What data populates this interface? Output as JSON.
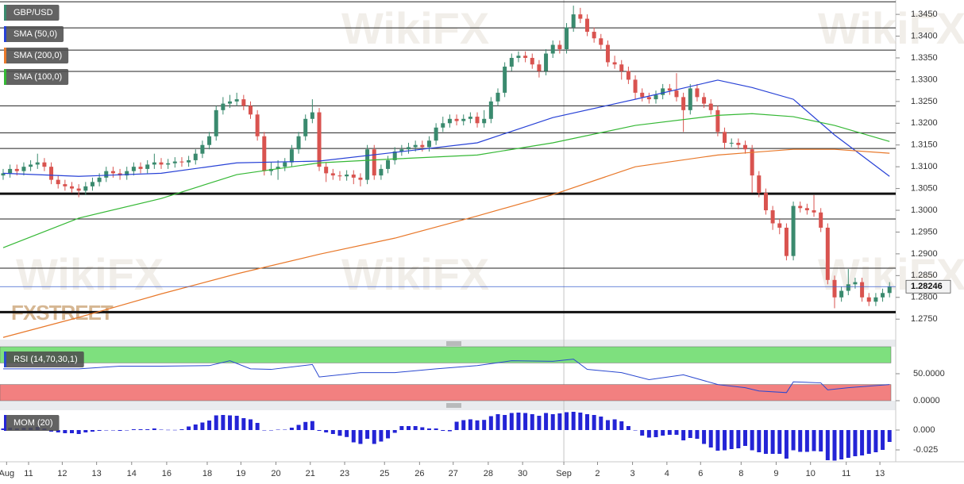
{
  "watermark": "WikiFX",
  "logo": "FXSTREET",
  "chart_data": [
    {
      "type": "candlestick",
      "name": "GBP/USD",
      "up_color": "#3a8a6e",
      "down_color": "#d9534f",
      "xlim": [
        -0.46,
        129.9
      ],
      "ylim": [
        1.2703,
        1.3483
      ],
      "yticks": [
        {
          "value": 1.275,
          "label": "1.2750"
        },
        {
          "value": 1.28,
          "label": "1.2800"
        },
        {
          "value": 1.285,
          "label": "1.2850"
        },
        {
          "value": 1.29,
          "label": "1.2900"
        },
        {
          "value": 1.295,
          "label": "1.2950"
        },
        {
          "value": 1.3,
          "label": "1.3000"
        },
        {
          "value": 1.305,
          "label": "1.3050"
        },
        {
          "value": 1.31,
          "label": "1.3100"
        },
        {
          "value": 1.315,
          "label": "1.3150"
        },
        {
          "value": 1.32,
          "label": "1.3200"
        },
        {
          "value": 1.325,
          "label": "1.3250"
        },
        {
          "value": 1.33,
          "label": "1.3300"
        },
        {
          "value": 1.335,
          "label": "1.3350"
        },
        {
          "value": 1.34,
          "label": "1.3400"
        },
        {
          "value": 1.345,
          "label": "1.3450"
        }
      ],
      "hlines": [
        1.3479,
        1.3419,
        1.3368,
        1.3319,
        1.324,
        1.3178,
        1.3142,
        1.298,
        1.2867
      ],
      "hlines_bold": [
        1.3038,
        1.2766
      ],
      "x_divider": 81.6,
      "last_price": 1.28246,
      "open": [
        1.308,
        1.3085,
        1.3095,
        1.309,
        1.31,
        1.3105,
        1.311,
        1.31,
        1.307,
        1.306,
        1.3055,
        1.305,
        1.3045,
        1.3055,
        1.3065,
        1.3075,
        1.309,
        1.3085,
        1.308,
        1.309,
        1.31,
        1.3095,
        1.3105,
        1.311,
        1.3105,
        1.3108,
        1.3112,
        1.311,
        1.3115,
        1.313,
        1.315,
        1.317,
        1.323,
        1.3245,
        1.325,
        1.3255,
        1.324,
        1.322,
        1.317,
        1.309,
        1.3095,
        1.31,
        1.311,
        1.314,
        1.317,
        1.321,
        1.3225,
        1.31,
        1.3085,
        1.308,
        1.3078,
        1.3082,
        1.3075,
        1.307,
        1.314,
        1.308,
        1.3095,
        1.3115,
        1.3135,
        1.314,
        1.3145,
        1.315,
        1.3145,
        1.316,
        1.319,
        1.32,
        1.321,
        1.3205,
        1.321,
        1.3215,
        1.32,
        1.321,
        1.325,
        1.327,
        1.333,
        1.335,
        1.3355,
        1.335,
        1.3335,
        1.332,
        1.336,
        1.338,
        1.337,
        1.342,
        1.345,
        1.344,
        1.341,
        1.3395,
        1.338,
        1.334,
        1.3335,
        1.332,
        1.33,
        1.327,
        1.326,
        1.3255,
        1.3265,
        1.328,
        1.3275,
        1.326,
        1.323,
        1.328,
        1.326,
        1.3245,
        1.323,
        1.318,
        1.3155,
        1.3155,
        1.315,
        1.314,
        1.308,
        1.304,
        1.3,
        1.297,
        1.296,
        1.2895,
        1.301,
        1.3005,
        1.3,
        1.2995,
        1.296,
        1.284,
        1.28,
        1.2815,
        1.283,
        1.2835,
        1.28,
        1.279,
        1.28,
        1.281
      ],
      "high": [
        1.3095,
        1.3105,
        1.3105,
        1.311,
        1.3115,
        1.313,
        1.312,
        1.311,
        1.308,
        1.307,
        1.3065,
        1.306,
        1.3065,
        1.3075,
        1.3085,
        1.31,
        1.31,
        1.3095,
        1.31,
        1.311,
        1.311,
        1.3115,
        1.313,
        1.312,
        1.3118,
        1.3122,
        1.3122,
        1.3125,
        1.314,
        1.316,
        1.318,
        1.324,
        1.326,
        1.3265,
        1.327,
        1.3265,
        1.325,
        1.323,
        1.318,
        1.311,
        1.3115,
        1.312,
        1.315,
        1.318,
        1.322,
        1.3255,
        1.3235,
        1.311,
        1.3095,
        1.309,
        1.3092,
        1.3092,
        1.3085,
        1.315,
        1.315,
        1.3105,
        1.3125,
        1.3145,
        1.315,
        1.3155,
        1.316,
        1.316,
        1.317,
        1.32,
        1.3215,
        1.322,
        1.322,
        1.322,
        1.3225,
        1.3225,
        1.323,
        1.326,
        1.328,
        1.334,
        1.336,
        1.3365,
        1.3365,
        1.336,
        1.3345,
        1.337,
        1.339,
        1.339,
        1.343,
        1.347,
        1.3465,
        1.345,
        1.342,
        1.3405,
        1.339,
        1.3355,
        1.3345,
        1.333,
        1.331,
        1.328,
        1.327,
        1.3275,
        1.329,
        1.329,
        1.3315,
        1.327,
        1.329,
        1.329,
        1.327,
        1.3255,
        1.324,
        1.319,
        1.3165,
        1.3165,
        1.316,
        1.315,
        1.309,
        1.305,
        1.301,
        1.298,
        1.297,
        1.302,
        1.302,
        1.3015,
        1.3035,
        1.3005,
        1.297,
        1.285,
        1.2825,
        1.2865,
        1.2845,
        1.2845,
        1.281,
        1.281,
        1.282,
        1.2835
      ],
      "low": [
        1.307,
        1.3075,
        1.308,
        1.308,
        1.309,
        1.3095,
        1.309,
        1.306,
        1.305,
        1.3045,
        1.304,
        1.303,
        1.3035,
        1.3045,
        1.3055,
        1.3065,
        1.3075,
        1.307,
        1.307,
        1.308,
        1.3085,
        1.3085,
        1.3095,
        1.3095,
        1.3095,
        1.3098,
        1.31,
        1.31,
        1.3105,
        1.312,
        1.314,
        1.316,
        1.322,
        1.3235,
        1.324,
        1.323,
        1.321,
        1.316,
        1.308,
        1.308,
        1.307,
        1.309,
        1.31,
        1.313,
        1.316,
        1.32,
        1.309,
        1.3065,
        1.307,
        1.3068,
        1.3068,
        1.306,
        1.3055,
        1.306,
        1.307,
        1.307,
        1.3085,
        1.3105,
        1.3125,
        1.313,
        1.3135,
        1.3135,
        1.3135,
        1.315,
        1.318,
        1.319,
        1.3195,
        1.3195,
        1.32,
        1.319,
        1.319,
        1.32,
        1.324,
        1.326,
        1.332,
        1.334,
        1.334,
        1.3325,
        1.3305,
        1.331,
        1.335,
        1.336,
        1.336,
        1.341,
        1.343,
        1.34,
        1.3385,
        1.337,
        1.333,
        1.3325,
        1.33,
        1.329,
        1.3255,
        1.325,
        1.3245,
        1.3245,
        1.3255,
        1.3265,
        1.325,
        1.318,
        1.322,
        1.325,
        1.3235,
        1.322,
        1.317,
        1.314,
        1.3145,
        1.314,
        1.313,
        1.304,
        1.303,
        1.299,
        1.2955,
        1.2945,
        1.2885,
        1.2885,
        1.2995,
        1.299,
        1.2985,
        1.295,
        1.283,
        1.2775,
        1.279,
        1.2805,
        1.282,
        1.279,
        1.278,
        1.278,
        1.279,
        1.28
      ],
      "close": [
        1.3085,
        1.3095,
        1.309,
        1.31,
        1.3105,
        1.311,
        1.31,
        1.307,
        1.306,
        1.3055,
        1.305,
        1.3045,
        1.3055,
        1.3065,
        1.3075,
        1.309,
        1.3085,
        1.308,
        1.309,
        1.31,
        1.3095,
        1.3105,
        1.311,
        1.3105,
        1.3108,
        1.3112,
        1.311,
        1.3115,
        1.313,
        1.315,
        1.317,
        1.323,
        1.3245,
        1.325,
        1.3255,
        1.324,
        1.322,
        1.317,
        1.309,
        1.3095,
        1.31,
        1.311,
        1.314,
        1.317,
        1.321,
        1.3225,
        1.31,
        1.3085,
        1.308,
        1.3078,
        1.3082,
        1.3075,
        1.307,
        1.314,
        1.308,
        1.3095,
        1.3115,
        1.3135,
        1.314,
        1.3145,
        1.315,
        1.3145,
        1.316,
        1.319,
        1.32,
        1.321,
        1.3205,
        1.321,
        1.3215,
        1.32,
        1.321,
        1.325,
        1.327,
        1.333,
        1.335,
        1.3355,
        1.335,
        1.3335,
        1.332,
        1.336,
        1.338,
        1.337,
        1.342,
        1.345,
        1.344,
        1.341,
        1.3395,
        1.338,
        1.334,
        1.3335,
        1.332,
        1.33,
        1.327,
        1.326,
        1.3255,
        1.3265,
        1.328,
        1.3275,
        1.326,
        1.323,
        1.328,
        1.326,
        1.3245,
        1.323,
        1.318,
        1.3155,
        1.3155,
        1.315,
        1.314,
        1.308,
        1.304,
        1.3,
        1.297,
        1.296,
        1.2895,
        1.301,
        1.3005,
        1.3,
        1.2995,
        1.296,
        1.284,
        1.28,
        1.2815,
        1.283,
        1.2835,
        1.28,
        1.279,
        1.28,
        1.281,
        1.2825
      ],
      "series": [
        {
          "name": "SMA (50,0)",
          "color": "#2741d6",
          "x": [
            0,
            11,
            23,
            34,
            46,
            57,
            69,
            80,
            92,
            104,
            109,
            115,
            121,
            129
          ],
          "values": [
            1.3085,
            1.3078,
            1.3085,
            1.3109,
            1.3113,
            1.3133,
            1.3155,
            1.3213,
            1.3255,
            1.3299,
            1.3282,
            1.3255,
            1.3173,
            1.3078
          ]
        },
        {
          "name": "SMA (200,0)",
          "color": "#e8782a",
          "x": [
            0,
            11,
            23,
            34,
            46,
            57,
            69,
            80,
            92,
            104,
            109,
            115,
            121,
            129
          ],
          "values": [
            1.2708,
            1.2754,
            1.2808,
            1.2854,
            1.2899,
            1.2936,
            1.2987,
            1.3036,
            1.31,
            1.3127,
            1.3133,
            1.314,
            1.314,
            1.3131
          ]
        },
        {
          "name": "SMA (100,0)",
          "color": "#35b835",
          "x": [
            0,
            11,
            23,
            34,
            46,
            57,
            69,
            80,
            92,
            104,
            109,
            115,
            121,
            129
          ],
          "values": [
            1.2914,
            1.2982,
            1.3027,
            1.3082,
            1.3109,
            1.3118,
            1.3127,
            1.3155,
            1.3195,
            1.3218,
            1.3222,
            1.3215,
            1.3195,
            1.3158
          ]
        }
      ]
    },
    {
      "type": "line",
      "name": "RSI (14,70,30,1)",
      "color": "#2a48d0",
      "xlim": [
        -0.46,
        129.9
      ],
      "ylim": [
        0,
        100
      ],
      "yticks": [
        {
          "value": 0,
          "label": "0.0000"
        },
        {
          "value": 50,
          "label": "50.0000"
        }
      ],
      "bands": [
        {
          "from": 70,
          "to": 100,
          "color": "#7ee07e"
        },
        {
          "from": 0,
          "to": 30,
          "color": "#f28080"
        }
      ],
      "x": [
        0,
        11,
        17,
        23,
        30,
        33,
        36,
        39,
        45,
        46,
        52,
        57,
        63,
        69,
        74,
        80,
        83,
        85,
        90,
        94,
        99,
        104,
        108,
        110,
        114,
        115,
        119,
        120,
        123,
        129
      ],
      "values": [
        59,
        59,
        64,
        64,
        65,
        74,
        59,
        58,
        67,
        44,
        52,
        52,
        59,
        65,
        74,
        73,
        77,
        58,
        52,
        39,
        48,
        30,
        24,
        18,
        15,
        35,
        33,
        20,
        24,
        30
      ]
    },
    {
      "type": "bar",
      "name": "MOM (20)",
      "color": "#2424d6",
      "xlim": [
        -0.46,
        129.9
      ],
      "ylim": [
        -0.04,
        0.025
      ],
      "yticks": [
        {
          "value": 0,
          "label": "0.000"
        },
        -0.025
      ],
      "xticks": [
        {
          "value": 0.5,
          "label": "Aug"
        },
        {
          "value": 3.7,
          "label": "11"
        },
        {
          "value": 8.6,
          "label": "12"
        },
        {
          "value": 13.6,
          "label": "13"
        },
        {
          "value": 18.7,
          "label": "14"
        },
        {
          "value": 23.8,
          "label": "16"
        },
        {
          "value": 29.7,
          "label": "18"
        },
        {
          "value": 34.6,
          "label": "19"
        },
        {
          "value": 39.7,
          "label": "20"
        },
        {
          "value": 44.7,
          "label": "21"
        },
        {
          "value": 49.7,
          "label": "23"
        },
        {
          "value": 55.5,
          "label": "25"
        },
        {
          "value": 60.6,
          "label": "26"
        },
        {
          "value": 65.5,
          "label": "27"
        },
        {
          "value": 70.6,
          "label": "28"
        },
        {
          "value": 75.6,
          "label": "30"
        },
        {
          "value": 81.6,
          "label": "Sep"
        },
        {
          "value": 86.5,
          "label": "2"
        },
        {
          "value": 91.6,
          "label": "3"
        },
        {
          "value": 96.6,
          "label": "4"
        },
        {
          "value": 101.5,
          "label": "6"
        },
        {
          "value": 107.4,
          "label": "8"
        },
        {
          "value": 112.5,
          "label": "9"
        },
        {
          "value": 117.5,
          "label": "10"
        },
        {
          "value": 122.7,
          "label": "11"
        },
        {
          "value": 127.6,
          "label": "13"
        }
      ],
      "values": [
        0.002,
        0.003,
        0.002,
        0.003,
        0.003,
        0.004,
        0.002,
        -0.002,
        -0.003,
        -0.004,
        -0.004,
        -0.005,
        -0.003,
        -0.002,
        -0.001,
        0.0,
        0.0,
        -0.001,
        0.0,
        0.001,
        0.001,
        0.001,
        0.002,
        0.0005,
        0.0003,
        0.0002,
        0.001,
        0.0045,
        0.007,
        0.0095,
        0.012,
        0.0185,
        0.019,
        0.0185,
        0.018,
        0.015,
        0.0135,
        0.009,
        0.0,
        -0.0005,
        0.0005,
        0.0005,
        0.003,
        0.0065,
        0.0102,
        0.0113,
        -0.001,
        -0.003,
        -0.005,
        -0.0072,
        -0.0088,
        -0.0155,
        -0.0175,
        -0.011,
        -0.0175,
        -0.0145,
        -0.0105,
        -0.0035,
        0.005,
        0.005,
        0.005,
        0.0035,
        0.002,
        0.002,
        -0.001,
        -0.0015,
        0.0105,
        0.0125,
        0.0135,
        0.0122,
        0.0128,
        0.0175,
        0.02,
        0.019,
        0.0215,
        0.022,
        0.0215,
        0.02,
        0.018,
        0.0215,
        0.02,
        0.021,
        0.0225,
        0.023,
        0.022,
        0.02,
        0.019,
        0.017,
        0.0125,
        0.0135,
        0.011,
        0.005,
        0.0,
        -0.007,
        -0.0095,
        -0.009,
        -0.007,
        -0.006,
        -0.006,
        -0.013,
        -0.01,
        -0.011,
        -0.0175,
        -0.022,
        -0.026,
        -0.0255,
        -0.024,
        -0.023,
        -0.02,
        -0.0255,
        -0.028,
        -0.03,
        -0.03,
        -0.03,
        -0.036,
        -0.0255,
        -0.0275,
        -0.0275,
        -0.0265,
        -0.027,
        -0.038,
        -0.0385,
        -0.037,
        -0.035,
        -0.033,
        -0.032,
        -0.03,
        -0.028,
        -0.025,
        -0.015
      ]
    }
  ]
}
